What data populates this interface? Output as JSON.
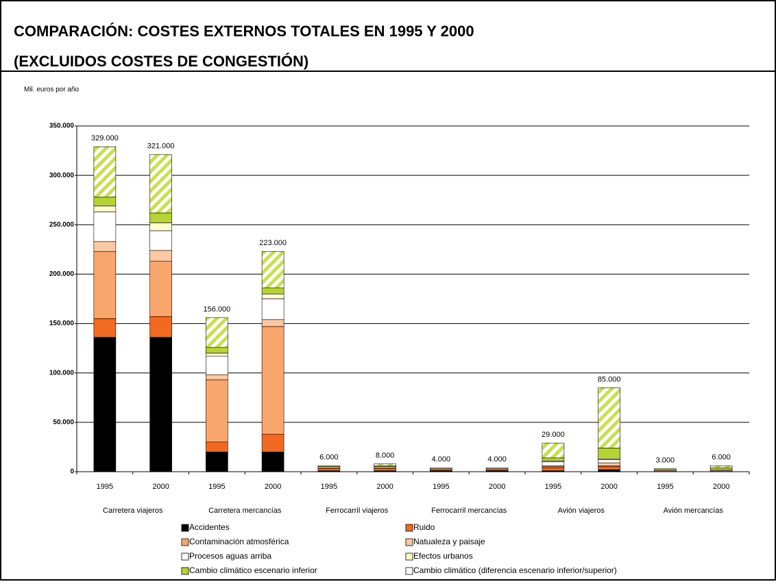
{
  "chart_data": {
    "type": "stacked_bar",
    "title": "COMPARACIÓN:  COSTES EXTERNOS TOTALES EN 1995 Y 2000",
    "subtitle": "(EXCLUIDOS COSTES DE CONGESTIÓN)",
    "y_label": "Mil. euros por año",
    "categories": [
      "1995",
      "2000",
      "1995",
      "2000",
      "1995",
      "2000",
      "1995",
      "2000",
      "1995",
      "2000",
      "1995",
      "2000"
    ],
    "groups": [
      "Carretera viajeros",
      "Carretera mercancías",
      "Ferrocarril viajeros",
      "Ferrocarril mercancías",
      "Avión viajeros",
      "Avión mercancías"
    ],
    "series": [
      {
        "name": "Accidentes",
        "color": "#000000",
        "values": [
          136000,
          136000,
          20000,
          20000,
          1000,
          1000,
          1000,
          1000,
          1000,
          2000,
          0,
          0
        ]
      },
      {
        "name": "Ruido",
        "color": "#f26a21",
        "values": [
          19000,
          21000,
          10000,
          18000,
          2000,
          2000,
          1000,
          1000,
          3000,
          3000,
          1000,
          1000
        ]
      },
      {
        "name": "Contaminación atmosférica",
        "color": "#f9a66c",
        "values": [
          68000,
          56000,
          63000,
          109000,
          1000,
          1000,
          1000,
          1000,
          1000,
          1000,
          0,
          0
        ]
      },
      {
        "name": "Natualeza y paisaje",
        "color": "#fbc8a4",
        "values": [
          10000,
          11000,
          5000,
          7000,
          0,
          0,
          0,
          0,
          1000,
          3000,
          0,
          0
        ]
      },
      {
        "name": "Procesos aguas arriba",
        "color": "#ffffff",
        "values": [
          30000,
          20000,
          19000,
          21000,
          1000,
          1000,
          1000,
          1000,
          4000,
          3000,
          1000,
          1000
        ]
      },
      {
        "name": "Efectos urbanos",
        "color": "#ffffcc",
        "values": [
          6000,
          8000,
          3000,
          5000,
          0,
          0,
          0,
          0,
          1000,
          1000,
          0,
          0
        ]
      },
      {
        "name": "Cambio climático escenario inferior",
        "color": "#b5d334",
        "values": [
          9000,
          10000,
          6000,
          6000,
          1000,
          1000,
          0,
          0,
          3000,
          11000,
          1000,
          2000
        ]
      },
      {
        "name": "Cambio climático (diferencia escenario inferior/superior)",
        "color": "#c8df52",
        "pattern": "hatch",
        "values": [
          51000,
          59000,
          30000,
          37000,
          0,
          2000,
          0,
          0,
          15000,
          61000,
          0,
          2000
        ]
      }
    ],
    "totals": {
      "values": [
        329000,
        321000,
        156000,
        223000,
        6000,
        8000,
        4000,
        4000,
        29000,
        85000,
        3000,
        6000
      ],
      "value_labels": [
        "329.000",
        "321.000",
        "156.000",
        "223.000",
        "6.000",
        "8.000",
        "4.000",
        "4.000",
        "29.000",
        "85.000",
        "3.000",
        "6.000"
      ]
    },
    "ylim": [
      0,
      350000
    ],
    "yticks": [
      0,
      {
        "value": 50000,
        "label": "50.000"
      },
      {
        "value": 100000,
        "label": "100.000"
      },
      {
        "value": 150000,
        "label": "150.000"
      },
      {
        "value": 200000,
        "label": "200.000"
      },
      {
        "value": 250000,
        "label": "250.000"
      },
      {
        "value": 300000,
        "label": "300.000"
      },
      {
        "value": 350000,
        "label": "350.000"
      }
    ],
    "grid": true
  }
}
